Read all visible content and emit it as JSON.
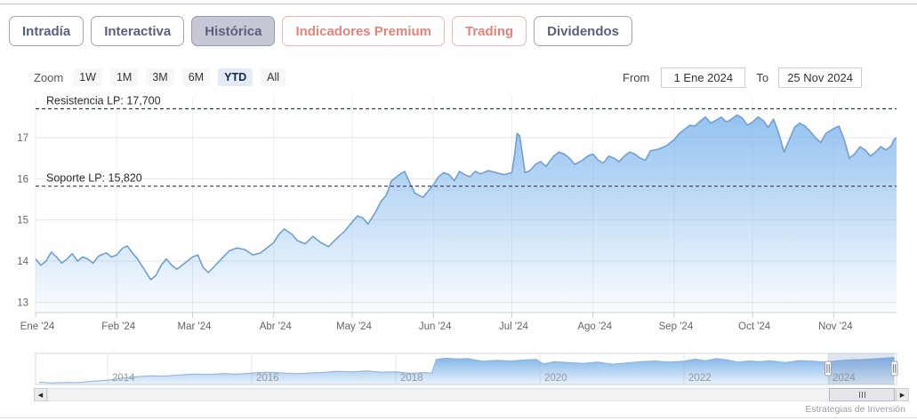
{
  "tabs": [
    {
      "label": "Intradía",
      "state": "default"
    },
    {
      "label": "Interactiva",
      "state": "default"
    },
    {
      "label": "Histórica",
      "state": "selected"
    },
    {
      "label": "Indicadores Premium",
      "state": "premium"
    },
    {
      "label": "Trading",
      "state": "premium"
    },
    {
      "label": "Dividendos",
      "state": "default"
    }
  ],
  "toolbar": {
    "zoom_label": "Zoom",
    "zoom_buttons": [
      {
        "label": "1W",
        "selected": false
      },
      {
        "label": "1M",
        "selected": false
      },
      {
        "label": "3M",
        "selected": false
      },
      {
        "label": "6M",
        "selected": false
      },
      {
        "label": "YTD",
        "selected": true
      },
      {
        "label": "All",
        "selected": false
      }
    ],
    "from_label": "From",
    "from_value": "1 Ene 2024",
    "to_label": "To",
    "to_value": "25 Nov 2024"
  },
  "credit": "Estrategias de Inversión",
  "colors": {
    "line": "#6f9fd4",
    "fill_top": "rgba(124,181,236,0.82)",
    "fill_bottom": "rgba(124,181,236,0.04)",
    "nav_fill_top": "rgba(116,173,230,0.9)",
    "nav_fill_bottom": "rgba(116,173,230,0.15)",
    "grid": "#e6e6e6",
    "grid_vertical": "#ededed",
    "axis_text": "#666666",
    "nav_text": "#999999",
    "resistance_line": "#2e4633",
    "support_line": "#552d50",
    "annotation_text": "#2b2b2b",
    "nav_mask": "rgba(110,135,180,0.22)",
    "tab_selected_bg": "#c7c8d6",
    "premium_accent": "#e2837b"
  },
  "chart_data": [
    {
      "type": "area",
      "role": "main-price-chart",
      "title": "",
      "xlabel": "",
      "ylabel": "",
      "ylim": [
        12.75,
        17.97
      ],
      "yticks": [
        13,
        14,
        15,
        16,
        17
      ],
      "x_unit": "day_of_year_2024",
      "xlim": [
        0,
        329
      ],
      "xticks": [
        {
          "day": 0,
          "label": "Ene '24"
        },
        {
          "day": 31,
          "label": "Feb '24"
        },
        {
          "day": 60,
          "label": "Mar '24"
        },
        {
          "day": 91,
          "label": "Abr '24"
        },
        {
          "day": 121,
          "label": "May '24"
        },
        {
          "day": 152,
          "label": "Jun '24"
        },
        {
          "day": 182,
          "label": "Jul '24"
        },
        {
          "day": 213,
          "label": "Ago '24"
        },
        {
          "day": 244,
          "label": "Sep '24"
        },
        {
          "day": 274,
          "label": "Oct '24"
        },
        {
          "day": 305,
          "label": "Nov '24"
        }
      ],
      "annotations": [
        {
          "label": "Resistencia LP: 17,700",
          "value": 17.7,
          "kind": "resistance"
        },
        {
          "label": "Soporte LP: 15,820",
          "value": 15.82,
          "kind": "support"
        }
      ],
      "legend": "off",
      "grid": "on",
      "series": [
        {
          "name": "price",
          "points": [
            [
              0,
              14.05
            ],
            [
              2,
              13.9
            ],
            [
              4,
              14.0
            ],
            [
              6,
              14.22
            ],
            [
              8,
              14.1
            ],
            [
              10,
              13.95
            ],
            [
              12,
              14.05
            ],
            [
              14,
              14.18
            ],
            [
              16,
              14.0
            ],
            [
              18,
              14.1
            ],
            [
              20,
              14.05
            ],
            [
              22,
              13.95
            ],
            [
              24,
              14.12
            ],
            [
              27,
              14.2
            ],
            [
              29,
              14.1
            ],
            [
              31,
              14.15
            ],
            [
              33,
              14.3
            ],
            [
              35,
              14.37
            ],
            [
              37,
              14.2
            ],
            [
              39,
              14.05
            ],
            [
              41,
              13.85
            ],
            [
              44,
              13.55
            ],
            [
              46,
              13.65
            ],
            [
              48,
              13.9
            ],
            [
              50,
              14.05
            ],
            [
              52,
              13.9
            ],
            [
              54,
              13.8
            ],
            [
              57,
              13.95
            ],
            [
              60,
              14.1
            ],
            [
              62,
              14.15
            ],
            [
              64,
              13.85
            ],
            [
              66,
              13.72
            ],
            [
              68,
              13.85
            ],
            [
              71,
              14.05
            ],
            [
              74,
              14.25
            ],
            [
              77,
              14.32
            ],
            [
              80,
              14.28
            ],
            [
              83,
              14.15
            ],
            [
              86,
              14.2
            ],
            [
              88,
              14.3
            ],
            [
              91,
              14.45
            ],
            [
              93,
              14.65
            ],
            [
              95,
              14.78
            ],
            [
              98,
              14.65
            ],
            [
              100,
              14.5
            ],
            [
              103,
              14.42
            ],
            [
              106,
              14.6
            ],
            [
              109,
              14.45
            ],
            [
              112,
              14.35
            ],
            [
              115,
              14.55
            ],
            [
              118,
              14.72
            ],
            [
              121,
              14.95
            ],
            [
              123,
              15.1
            ],
            [
              125,
              15.05
            ],
            [
              127,
              14.9
            ],
            [
              130,
              15.2
            ],
            [
              132,
              15.45
            ],
            [
              134,
              15.6
            ],
            [
              136,
              15.95
            ],
            [
              139,
              16.1
            ],
            [
              141,
              16.18
            ],
            [
              143,
              15.9
            ],
            [
              145,
              15.65
            ],
            [
              148,
              15.55
            ],
            [
              150,
              15.7
            ],
            [
              152,
              15.85
            ],
            [
              154,
              16.05
            ],
            [
              156,
              16.15
            ],
            [
              158,
              16.1
            ],
            [
              160,
              15.95
            ],
            [
              162,
              16.18
            ],
            [
              164,
              16.1
            ],
            [
              166,
              16.05
            ],
            [
              168,
              16.18
            ],
            [
              170,
              16.12
            ],
            [
              173,
              16.2
            ],
            [
              176,
              16.15
            ],
            [
              179,
              16.1
            ],
            [
              182,
              16.15
            ],
            [
              183,
              16.55
            ],
            [
              184,
              17.1
            ],
            [
              185,
              17.05
            ],
            [
              186,
              16.6
            ],
            [
              187,
              16.15
            ],
            [
              189,
              16.2
            ],
            [
              191,
              16.35
            ],
            [
              193,
              16.42
            ],
            [
              195,
              16.3
            ],
            [
              198,
              16.55
            ],
            [
              200,
              16.65
            ],
            [
              202,
              16.6
            ],
            [
              204,
              16.5
            ],
            [
              206,
              16.35
            ],
            [
              209,
              16.45
            ],
            [
              211,
              16.55
            ],
            [
              213,
              16.6
            ],
            [
              215,
              16.45
            ],
            [
              217,
              16.38
            ],
            [
              219,
              16.55
            ],
            [
              221,
              16.5
            ],
            [
              223,
              16.42
            ],
            [
              225,
              16.55
            ],
            [
              227,
              16.65
            ],
            [
              229,
              16.6
            ],
            [
              231,
              16.5
            ],
            [
              233,
              16.45
            ],
            [
              235,
              16.68
            ],
            [
              238,
              16.72
            ],
            [
              241,
              16.8
            ],
            [
              244,
              16.95
            ],
            [
              246,
              17.1
            ],
            [
              248,
              17.2
            ],
            [
              250,
              17.3
            ],
            [
              252,
              17.28
            ],
            [
              254,
              17.4
            ],
            [
              256,
              17.5
            ],
            [
              258,
              17.35
            ],
            [
              260,
              17.42
            ],
            [
              262,
              17.5
            ],
            [
              264,
              17.38
            ],
            [
              266,
              17.45
            ],
            [
              268,
              17.55
            ],
            [
              270,
              17.48
            ],
            [
              272,
              17.3
            ],
            [
              274,
              17.38
            ],
            [
              276,
              17.5
            ],
            [
              278,
              17.42
            ],
            [
              280,
              17.25
            ],
            [
              282,
              17.45
            ],
            [
              284,
              17.1
            ],
            [
              286,
              16.65
            ],
            [
              288,
              16.95
            ],
            [
              290,
              17.25
            ],
            [
              292,
              17.35
            ],
            [
              294,
              17.28
            ],
            [
              296,
              17.15
            ],
            [
              298,
              17.0
            ],
            [
              300,
              16.88
            ],
            [
              302,
              17.1
            ],
            [
              305,
              17.22
            ],
            [
              307,
              17.28
            ],
            [
              309,
              16.95
            ],
            [
              311,
              16.5
            ],
            [
              313,
              16.6
            ],
            [
              315,
              16.78
            ],
            [
              317,
              16.7
            ],
            [
              319,
              16.55
            ],
            [
              321,
              16.65
            ],
            [
              323,
              16.78
            ],
            [
              325,
              16.7
            ],
            [
              327,
              16.8
            ],
            [
              328,
              16.95
            ],
            [
              329,
              17.0
            ]
          ]
        }
      ]
    },
    {
      "type": "area",
      "role": "navigator",
      "x_unit": "year",
      "xlim": [
        2013.0,
        2024.95
      ],
      "ylim": [
        11.4,
        18.2
      ],
      "xticks": [
        {
          "year": 2014,
          "label": "2014"
        },
        {
          "year": 2016,
          "label": "2016"
        },
        {
          "year": 2018,
          "label": "2018"
        },
        {
          "year": 2020,
          "label": "2020"
        },
        {
          "year": 2022,
          "label": "2022"
        },
        {
          "year": 2024,
          "label": "2024"
        }
      ],
      "selected_range": [
        2024.0,
        2024.92
      ],
      "series": [
        {
          "name": "price-history",
          "points": [
            [
              2013.05,
              11.9
            ],
            [
              2013.2,
              11.75
            ],
            [
              2013.4,
              11.85
            ],
            [
              2013.6,
              11.8
            ],
            [
              2013.8,
              12.1
            ],
            [
              2014.0,
              12.35
            ],
            [
              2014.2,
              12.8
            ],
            [
              2014.4,
              13.1
            ],
            [
              2014.6,
              13.3
            ],
            [
              2014.8,
              13.25
            ],
            [
              2015.0,
              13.5
            ],
            [
              2015.2,
              13.7
            ],
            [
              2015.4,
              13.6
            ],
            [
              2015.6,
              13.8
            ],
            [
              2015.8,
              13.65
            ],
            [
              2016.0,
              13.9
            ],
            [
              2016.2,
              14.1
            ],
            [
              2016.4,
              13.95
            ],
            [
              2016.6,
              13.75
            ],
            [
              2016.8,
              13.9
            ],
            [
              2017.0,
              14.05
            ],
            [
              2017.2,
              14.3
            ],
            [
              2017.4,
              14.15
            ],
            [
              2017.6,
              14.35
            ],
            [
              2017.8,
              14.1
            ],
            [
              2018.0,
              14.15
            ],
            [
              2018.2,
              13.85
            ],
            [
              2018.4,
              14.0
            ],
            [
              2018.5,
              13.9
            ],
            [
              2018.56,
              16.9
            ],
            [
              2018.7,
              17.15
            ],
            [
              2018.85,
              17.0
            ],
            [
              2019.0,
              17.1
            ],
            [
              2019.2,
              16.5
            ],
            [
              2019.4,
              16.7
            ],
            [
              2019.6,
              16.55
            ],
            [
              2019.8,
              16.8
            ],
            [
              2019.95,
              16.9
            ],
            [
              2020.05,
              15.9
            ],
            [
              2020.2,
              16.4
            ],
            [
              2020.4,
              16.2
            ],
            [
              2020.6,
              16.0
            ],
            [
              2020.8,
              16.3
            ],
            [
              2021.0,
              15.85
            ],
            [
              2021.2,
              16.1
            ],
            [
              2021.4,
              16.4
            ],
            [
              2021.6,
              16.55
            ],
            [
              2021.8,
              16.3
            ],
            [
              2022.0,
              16.5
            ],
            [
              2022.15,
              16.95
            ],
            [
              2022.3,
              16.6
            ],
            [
              2022.45,
              17.1
            ],
            [
              2022.6,
              16.8
            ],
            [
              2022.75,
              16.3
            ],
            [
              2022.9,
              16.55
            ],
            [
              2023.05,
              16.4
            ],
            [
              2023.2,
              16.6
            ],
            [
              2023.4,
              16.2
            ],
            [
              2023.6,
              16.65
            ],
            [
              2023.8,
              16.5
            ],
            [
              2023.95,
              16.3
            ],
            [
              2024.1,
              16.55
            ],
            [
              2024.3,
              16.8
            ],
            [
              2024.5,
              16.9
            ],
            [
              2024.7,
              17.1
            ],
            [
              2024.92,
              17.35
            ]
          ]
        }
      ]
    }
  ]
}
